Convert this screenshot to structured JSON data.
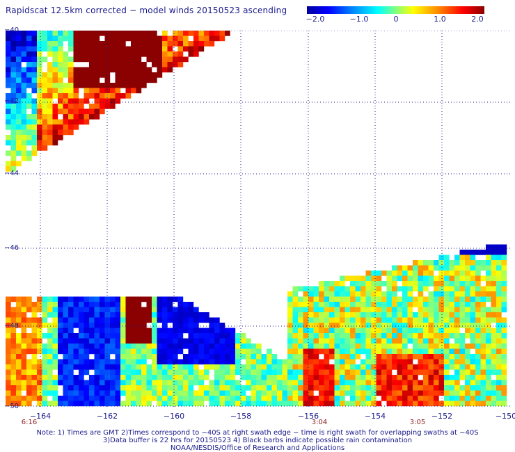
{
  "title": "Rapidscat 12.5km corrected − model winds 20150523 ascending",
  "colorbar": {
    "labels": [
      "−2.0",
      "−1.0",
      "0",
      "1.0",
      "2.0"
    ],
    "values": [
      -2.0,
      -1.0,
      0,
      1.0,
      2.0
    ],
    "range": [
      -2.0,
      2.0
    ],
    "colors": [
      "#0000a0",
      "#0000ff",
      "#0080ff",
      "#00ffff",
      "#80ff80",
      "#ffff00",
      "#ff8000",
      "#ff0000",
      "#8b0000"
    ]
  },
  "axes": {
    "lat_labels": [
      "−40",
      "−42",
      "−44",
      "−46",
      "−48",
      "−50"
    ],
    "lon_labels": [
      "−164",
      "−162",
      "−160",
      "−158",
      "−156",
      "−154",
      "−152",
      "−150"
    ]
  },
  "times": [
    {
      "label": "6:16",
      "lon": -165
    },
    {
      "label": "3:04",
      "lon": -156
    },
    {
      "label": "3:05",
      "lon": -152.7
    }
  ],
  "notes": [
    "Note: 1) Times are GMT 2)Times correspond to −40S at right swath edge − time is right swath for overlapping swaths at −40S",
    "3)Data buffer is 22 hrs for 20150523 4) Black barbs indicate possible rain contamination",
    "NOAA/NESDIS/Office of Research and Applications"
  ]
}
